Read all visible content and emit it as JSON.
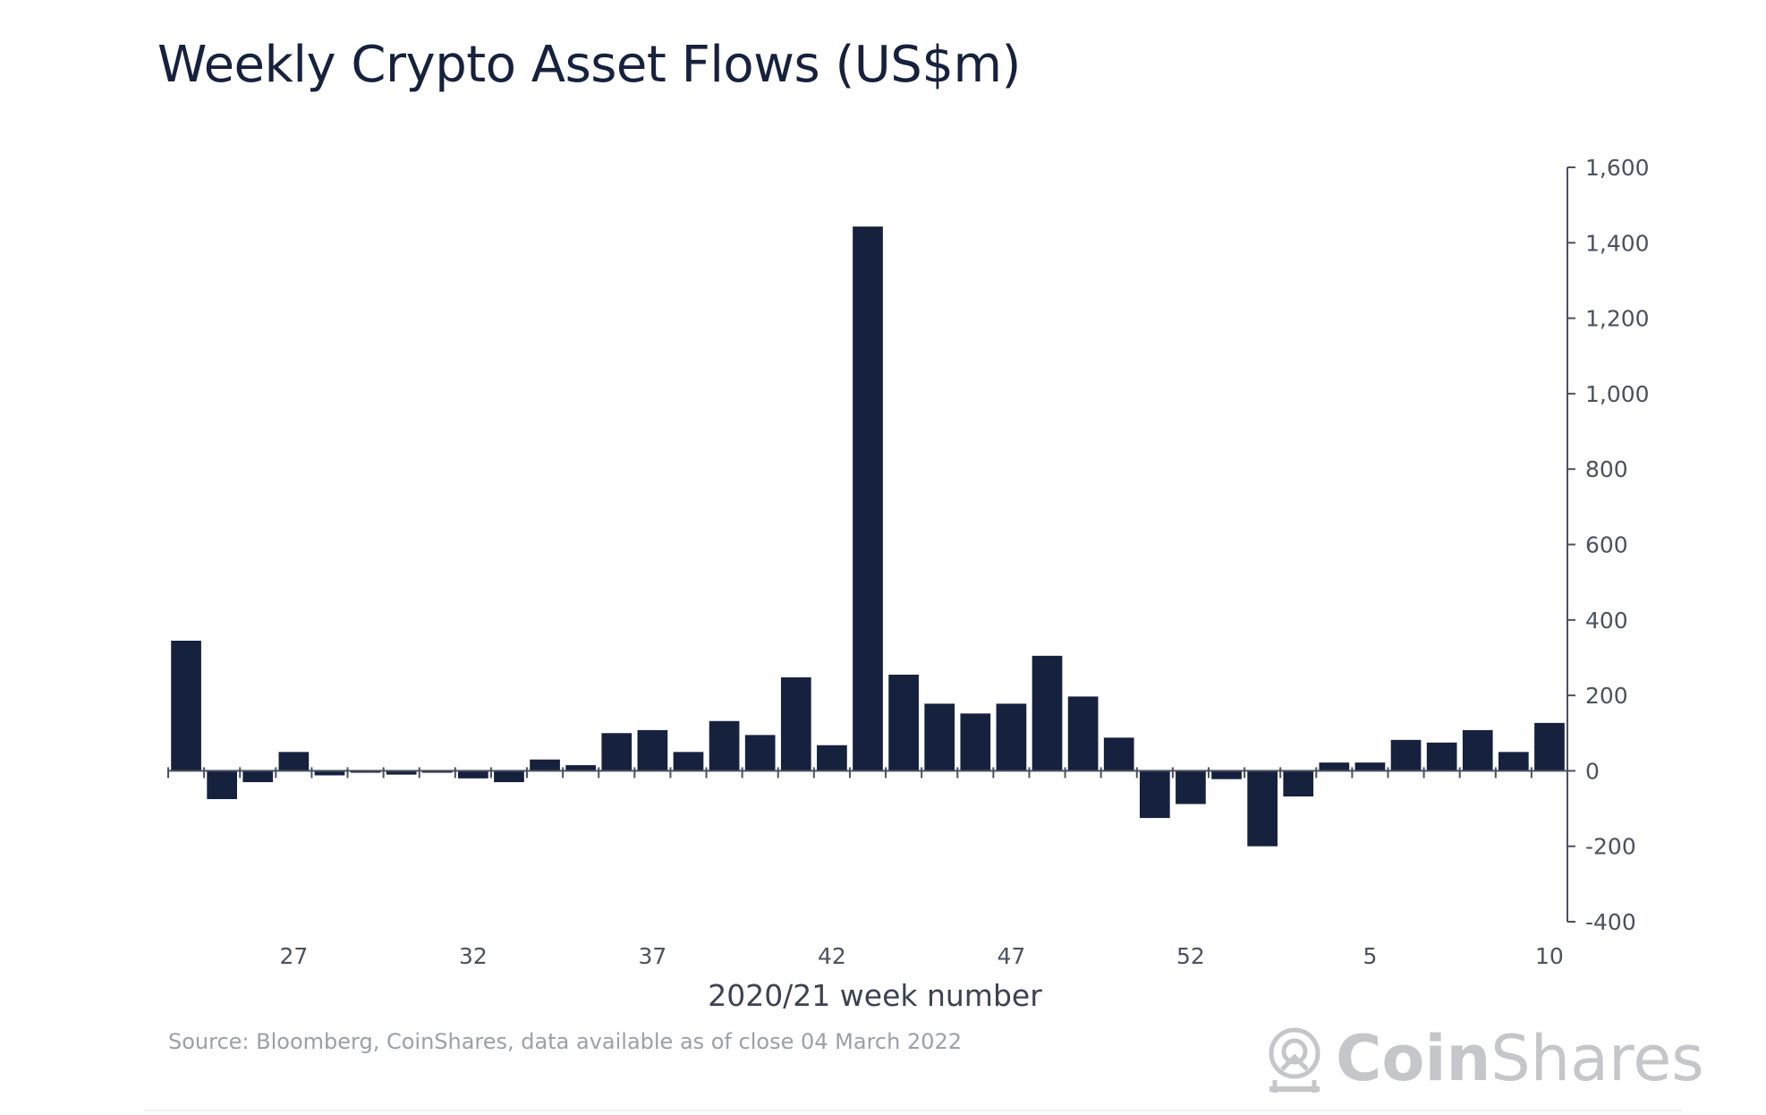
{
  "chart_data": {
    "type": "bar",
    "title": "Weekly Crypto Asset Flows (US$m)",
    "xlabel": "2020/21 week number",
    "ylabel": "",
    "ylim": [
      -400,
      1600
    ],
    "yticks": [
      1600,
      1400,
      1200,
      1000,
      800,
      600,
      400,
      200,
      0,
      -200,
      -400
    ],
    "ytick_labels": [
      "1,600",
      "1,400",
      "1,200",
      "1,000",
      "800",
      "600",
      "400",
      "200",
      "0",
      "-200",
      "-400"
    ],
    "y_axis_side": "right",
    "grid": false,
    "legend": "none",
    "categories": [
      "24",
      "25",
      "26",
      "27",
      "28",
      "29",
      "30",
      "31",
      "32",
      "33",
      "34",
      "35",
      "36",
      "37",
      "38",
      "39",
      "40",
      "41",
      "42",
      "43",
      "44",
      "45",
      "46",
      "47",
      "48",
      "49",
      "50",
      "51",
      "52",
      "1",
      "2",
      "3",
      "4",
      "5",
      "6",
      "7",
      "8",
      "9",
      "10"
    ],
    "values": [
      345,
      -75,
      -30,
      50,
      -12,
      -5,
      -10,
      -5,
      -20,
      -30,
      30,
      15,
      100,
      108,
      50,
      132,
      95,
      248,
      68,
      1443,
      255,
      178,
      152,
      178,
      305,
      197,
      88,
      -125,
      -88,
      -22,
      -200,
      -68,
      22,
      22,
      82,
      75,
      108,
      50,
      127
    ],
    "xtick_labels": [
      "27",
      "32",
      "37",
      "42",
      "47",
      "52",
      "5",
      "10"
    ],
    "xtick_indices": [
      3,
      8,
      13,
      18,
      23,
      28,
      33,
      38
    ],
    "bar_color": "#16213e",
    "axis_color": "#4b5160",
    "tick_label_color": "#4b5160"
  },
  "footer": {
    "source": "Source: Bloomberg, CoinShares, data available as of close 04 March 2022"
  },
  "brand": {
    "name_part1": "Coin",
    "name_part2": "Shares",
    "icon": "coinshares-logo-icon",
    "color": "#c4c6ca"
  }
}
